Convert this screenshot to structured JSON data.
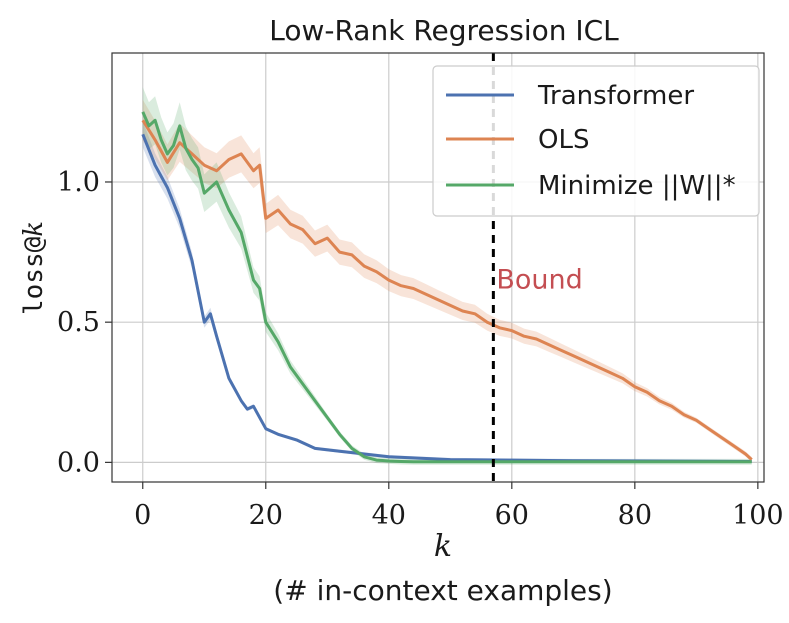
{
  "chart_data": {
    "type": "line",
    "title": "Low-Rank Regression ICL",
    "xlabel": "k",
    "xlabel_sub": "(# in-context examples)",
    "ylabel_mono": "loss@",
    "ylabel_var": "k",
    "xlim": [
      -5,
      101
    ],
    "ylim": [
      -0.07,
      1.46
    ],
    "xticks": [
      0,
      20,
      40,
      60,
      80,
      100
    ],
    "xtick_labels": [
      "0",
      "20",
      "40",
      "60",
      "80",
      "100"
    ],
    "yticks": [
      0.0,
      0.5,
      1.0
    ],
    "ytick_labels": [
      "0.0",
      "0.5",
      "1.0"
    ],
    "grid": true,
    "legend_position": "top-right",
    "vline": {
      "x": 57,
      "label": "Bound",
      "label_color": "#c44e52"
    },
    "series": [
      {
        "name": "Transformer",
        "color": "#4c72b0",
        "band": 0.04,
        "x": [
          0,
          2,
          4,
          6,
          8,
          10,
          11,
          12,
          14,
          16,
          17,
          18,
          20,
          22,
          25,
          28,
          32,
          36,
          40,
          50,
          60,
          70,
          80,
          90,
          99
        ],
        "values": [
          1.17,
          1.06,
          0.98,
          0.87,
          0.72,
          0.5,
          0.53,
          0.45,
          0.3,
          0.22,
          0.19,
          0.2,
          0.12,
          0.1,
          0.08,
          0.05,
          0.04,
          0.03,
          0.02,
          0.01,
          0.008,
          0.006,
          0.005,
          0.004,
          0.003
        ]
      },
      {
        "name": "OLS",
        "color": "#dd8452",
        "band": 0.06,
        "x": [
          0,
          2,
          4,
          6,
          8,
          10,
          12,
          14,
          16,
          18,
          19,
          20,
          22,
          24,
          26,
          28,
          30,
          32,
          34,
          36,
          38,
          40,
          42,
          44,
          46,
          48,
          50,
          52,
          54,
          56,
          58,
          60,
          62,
          64,
          66,
          68,
          70,
          72,
          74,
          76,
          78,
          80,
          82,
          84,
          86,
          88,
          90,
          92,
          94,
          96,
          98,
          99
        ],
        "values": [
          1.22,
          1.15,
          1.07,
          1.14,
          1.1,
          1.06,
          1.04,
          1.08,
          1.1,
          1.04,
          1.06,
          0.87,
          0.9,
          0.85,
          0.83,
          0.78,
          0.8,
          0.75,
          0.74,
          0.7,
          0.68,
          0.65,
          0.63,
          0.62,
          0.6,
          0.58,
          0.56,
          0.54,
          0.53,
          0.5,
          0.48,
          0.47,
          0.45,
          0.44,
          0.42,
          0.4,
          0.38,
          0.36,
          0.34,
          0.32,
          0.3,
          0.27,
          0.25,
          0.22,
          0.2,
          0.17,
          0.15,
          0.12,
          0.09,
          0.06,
          0.03,
          0.01
        ]
      },
      {
        "name": "Minimize ||W||*",
        "color": "#55a868",
        "band": 0.07,
        "x": [
          0,
          1,
          2,
          3,
          4,
          5,
          6,
          7,
          8,
          9,
          10,
          12,
          14,
          16,
          18,
          19,
          20,
          22,
          24,
          26,
          28,
          30,
          32,
          34,
          36,
          38,
          40,
          42,
          44,
          50,
          60,
          70,
          80,
          90,
          99
        ],
        "values": [
          1.25,
          1.2,
          1.22,
          1.15,
          1.1,
          1.13,
          1.2,
          1.12,
          1.08,
          1.05,
          0.96,
          1.0,
          0.9,
          0.82,
          0.65,
          0.62,
          0.5,
          0.43,
          0.34,
          0.28,
          0.22,
          0.16,
          0.1,
          0.05,
          0.02,
          0.008,
          0.005,
          0.003,
          0.002,
          0.002,
          0.002,
          0.002,
          0.002,
          0.002,
          0.002
        ]
      }
    ]
  }
}
